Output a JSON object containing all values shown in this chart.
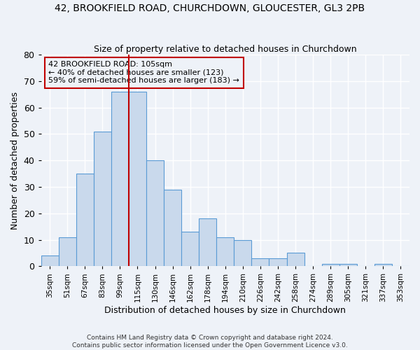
{
  "title1": "42, BROOKFIELD ROAD, CHURCHDOWN, GLOUCESTER, GL3 2PB",
  "title2": "Size of property relative to detached houses in Churchdown",
  "xlabel": "Distribution of detached houses by size in Churchdown",
  "ylabel": "Number of detached properties",
  "bin_labels": [
    "35sqm",
    "51sqm",
    "67sqm",
    "83sqm",
    "99sqm",
    "115sqm",
    "130sqm",
    "146sqm",
    "162sqm",
    "178sqm",
    "194sqm",
    "210sqm",
    "226sqm",
    "242sqm",
    "258sqm",
    "274sqm",
    "289sqm",
    "305sqm",
    "321sqm",
    "337sqm",
    "353sqm"
  ],
  "bar_heights": [
    4,
    11,
    35,
    51,
    66,
    66,
    40,
    29,
    13,
    18,
    11,
    10,
    3,
    3,
    5,
    0,
    1,
    1,
    0,
    1,
    0
  ],
  "bar_color": "#c9d9ec",
  "bar_edge_color": "#5b9bd5",
  "ylim": [
    0,
    80
  ],
  "yticks": [
    0,
    10,
    20,
    30,
    40,
    50,
    60,
    70,
    80
  ],
  "vline_x": 4.5,
  "vline_color": "#c00000",
  "annotation_text": "42 BROOKFIELD ROAD: 105sqm\n← 40% of detached houses are smaller (123)\n59% of semi-detached houses are larger (183) →",
  "footnote": "Contains HM Land Registry data © Crown copyright and database right 2024.\nContains public sector information licensed under the Open Government Licence v3.0.",
  "background_color": "#eef2f8",
  "grid_color": "#ffffff"
}
